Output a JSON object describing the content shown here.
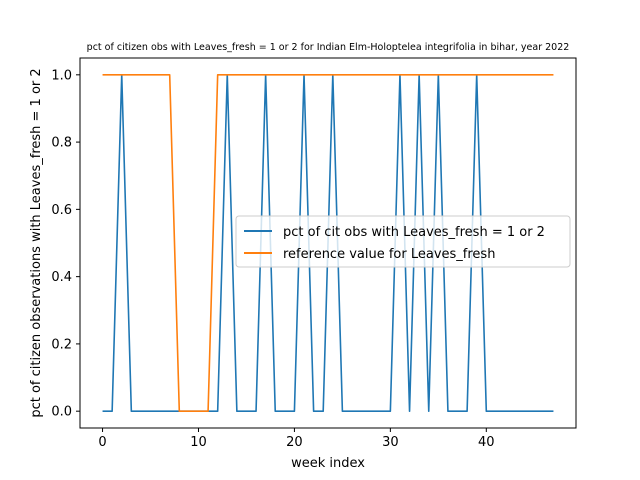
{
  "chart_data": {
    "type": "line",
    "title": "pct of citizen obs with Leaves_fresh = 1 or 2 for Indian Elm-Holoptelea integrifolia in bihar, year 2022",
    "xlabel": "week index",
    "ylabel": "pct of citizen observations with Leaves_fresh = 1 or 2",
    "xlim": [
      -2.35,
      49.35
    ],
    "ylim": [
      -0.05,
      1.05
    ],
    "xticks": [
      0,
      10,
      20,
      30,
      40
    ],
    "yticks": [
      0.0,
      0.2,
      0.4,
      0.6,
      0.8,
      1.0
    ],
    "xtick_labels": [
      "0",
      "10",
      "20",
      "30",
      "40"
    ],
    "ytick_labels": [
      "0.0",
      "0.2",
      "0.4",
      "0.6",
      "0.8",
      "1.0"
    ],
    "legend_position": "center-right",
    "grid": false,
    "x": [
      0,
      1,
      2,
      3,
      4,
      5,
      6,
      7,
      8,
      9,
      10,
      11,
      12,
      13,
      14,
      15,
      16,
      17,
      18,
      19,
      20,
      21,
      22,
      23,
      24,
      25,
      26,
      27,
      28,
      29,
      30,
      31,
      32,
      33,
      34,
      35,
      36,
      37,
      38,
      39,
      40,
      41,
      42,
      43,
      44,
      45,
      46,
      47
    ],
    "series": [
      {
        "name": "pct of cit obs with Leaves_fresh = 1 or 2",
        "color": "#1f77b4",
        "values": [
          0,
          0,
          1,
          0,
          0,
          0,
          0,
          0,
          0,
          0,
          0,
          0,
          0,
          1,
          0,
          0,
          0,
          1,
          0,
          0,
          0,
          1,
          0,
          0,
          1,
          0,
          0,
          0,
          0,
          0,
          0,
          1,
          0,
          1,
          0,
          1,
          0,
          0,
          0,
          1,
          0,
          0,
          0,
          0,
          0,
          0,
          0,
          0
        ]
      },
      {
        "name": "reference value for Leaves_fresh",
        "color": "#ff7f0e",
        "values": [
          1,
          1,
          1,
          1,
          1,
          1,
          1,
          1,
          0,
          0,
          0,
          0,
          1,
          1,
          1,
          1,
          1,
          1,
          1,
          1,
          1,
          1,
          1,
          1,
          1,
          1,
          1,
          1,
          1,
          1,
          1,
          1,
          1,
          1,
          1,
          1,
          1,
          1,
          1,
          1,
          1,
          1,
          1,
          1,
          1,
          1,
          1,
          1
        ]
      }
    ]
  }
}
